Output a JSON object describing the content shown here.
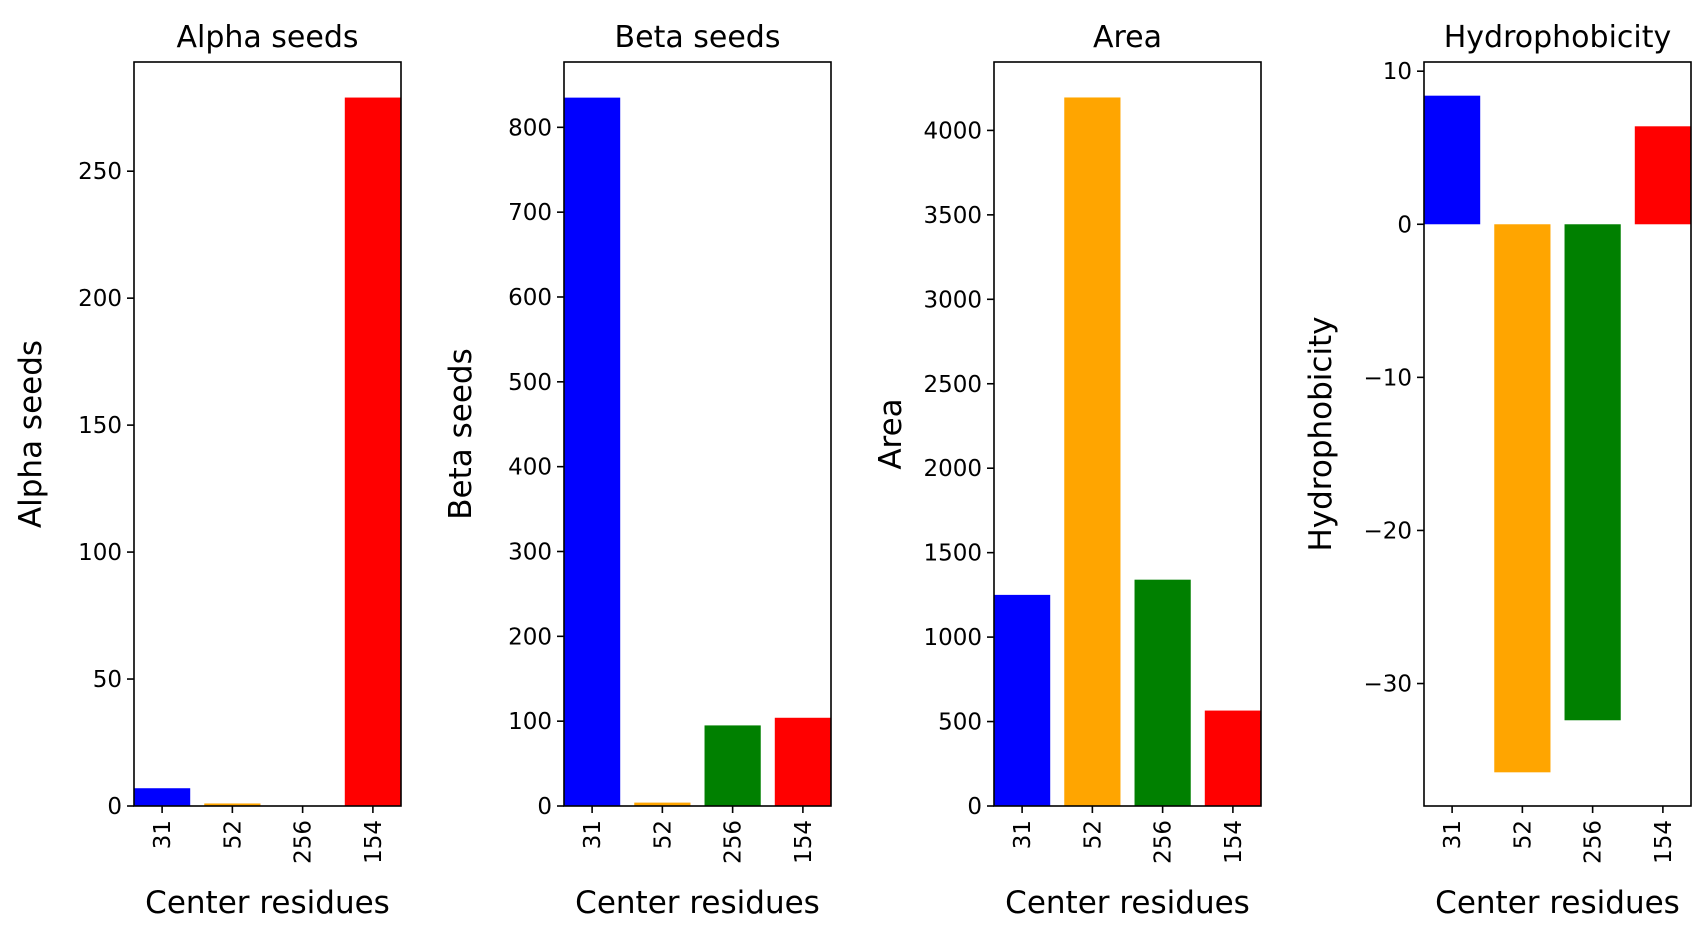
{
  "chart_data": [
    {
      "type": "bar",
      "title": "Alpha seeds",
      "xlabel": "Center residues",
      "ylabel": "Alpha seeds",
      "categories": [
        "31",
        "52",
        "256",
        "154"
      ],
      "values": [
        7,
        1,
        0,
        279
      ],
      "colors": [
        "#0000ff",
        "#ffa500",
        "#008000",
        "#ff0000"
      ],
      "ylim": [
        0,
        293
      ],
      "yticks": [
        0,
        50,
        100,
        150,
        200,
        250
      ],
      "ytick_labels": [
        "0",
        "50",
        "100",
        "150",
        "200",
        "250"
      ],
      "grid": false
    },
    {
      "type": "bar",
      "title": "Beta seeds",
      "xlabel": "Center residues",
      "ylabel": "Beta seeds",
      "categories": [
        "31",
        "52",
        "256",
        "154"
      ],
      "values": [
        835,
        4,
        95,
        104
      ],
      "colors": [
        "#0000ff",
        "#ffa500",
        "#008000",
        "#ff0000"
      ],
      "ylim": [
        0,
        877
      ],
      "yticks": [
        0,
        100,
        200,
        300,
        400,
        500,
        600,
        700,
        800
      ],
      "ytick_labels": [
        "0",
        "100",
        "200",
        "300",
        "400",
        "500",
        "600",
        "700",
        "800"
      ],
      "grid": false
    },
    {
      "type": "bar",
      "title": "Area",
      "xlabel": "Center residues",
      "ylabel": "Area",
      "categories": [
        "31",
        "52",
        "256",
        "154"
      ],
      "values": [
        1250,
        4195,
        1340,
        565
      ],
      "colors": [
        "#0000ff",
        "#ffa500",
        "#008000",
        "#ff0000"
      ],
      "ylim": [
        0,
        4405
      ],
      "yticks": [
        0,
        500,
        1000,
        1500,
        2000,
        2500,
        3000,
        3500,
        4000
      ],
      "ytick_labels": [
        "0",
        "500",
        "1000",
        "1500",
        "2000",
        "2500",
        "3000",
        "3500",
        "4000"
      ],
      "grid": false
    },
    {
      "type": "bar",
      "title": "Hydrophobicity",
      "xlabel": "Center residues",
      "ylabel": "Hydrophobicity",
      "categories": [
        "31",
        "52",
        "256",
        "154"
      ],
      "values": [
        8.4,
        -35.8,
        -32.4,
        6.4
      ],
      "colors": [
        "#0000ff",
        "#ffa500",
        "#008000",
        "#ff0000"
      ],
      "ylim": [
        -38.0,
        10.6
      ],
      "yticks": [
        -30,
        -20,
        -10,
        0,
        10
      ],
      "ytick_labels": [
        "−30",
        "−20",
        "−10",
        "0",
        "10"
      ],
      "grid": false
    }
  ]
}
